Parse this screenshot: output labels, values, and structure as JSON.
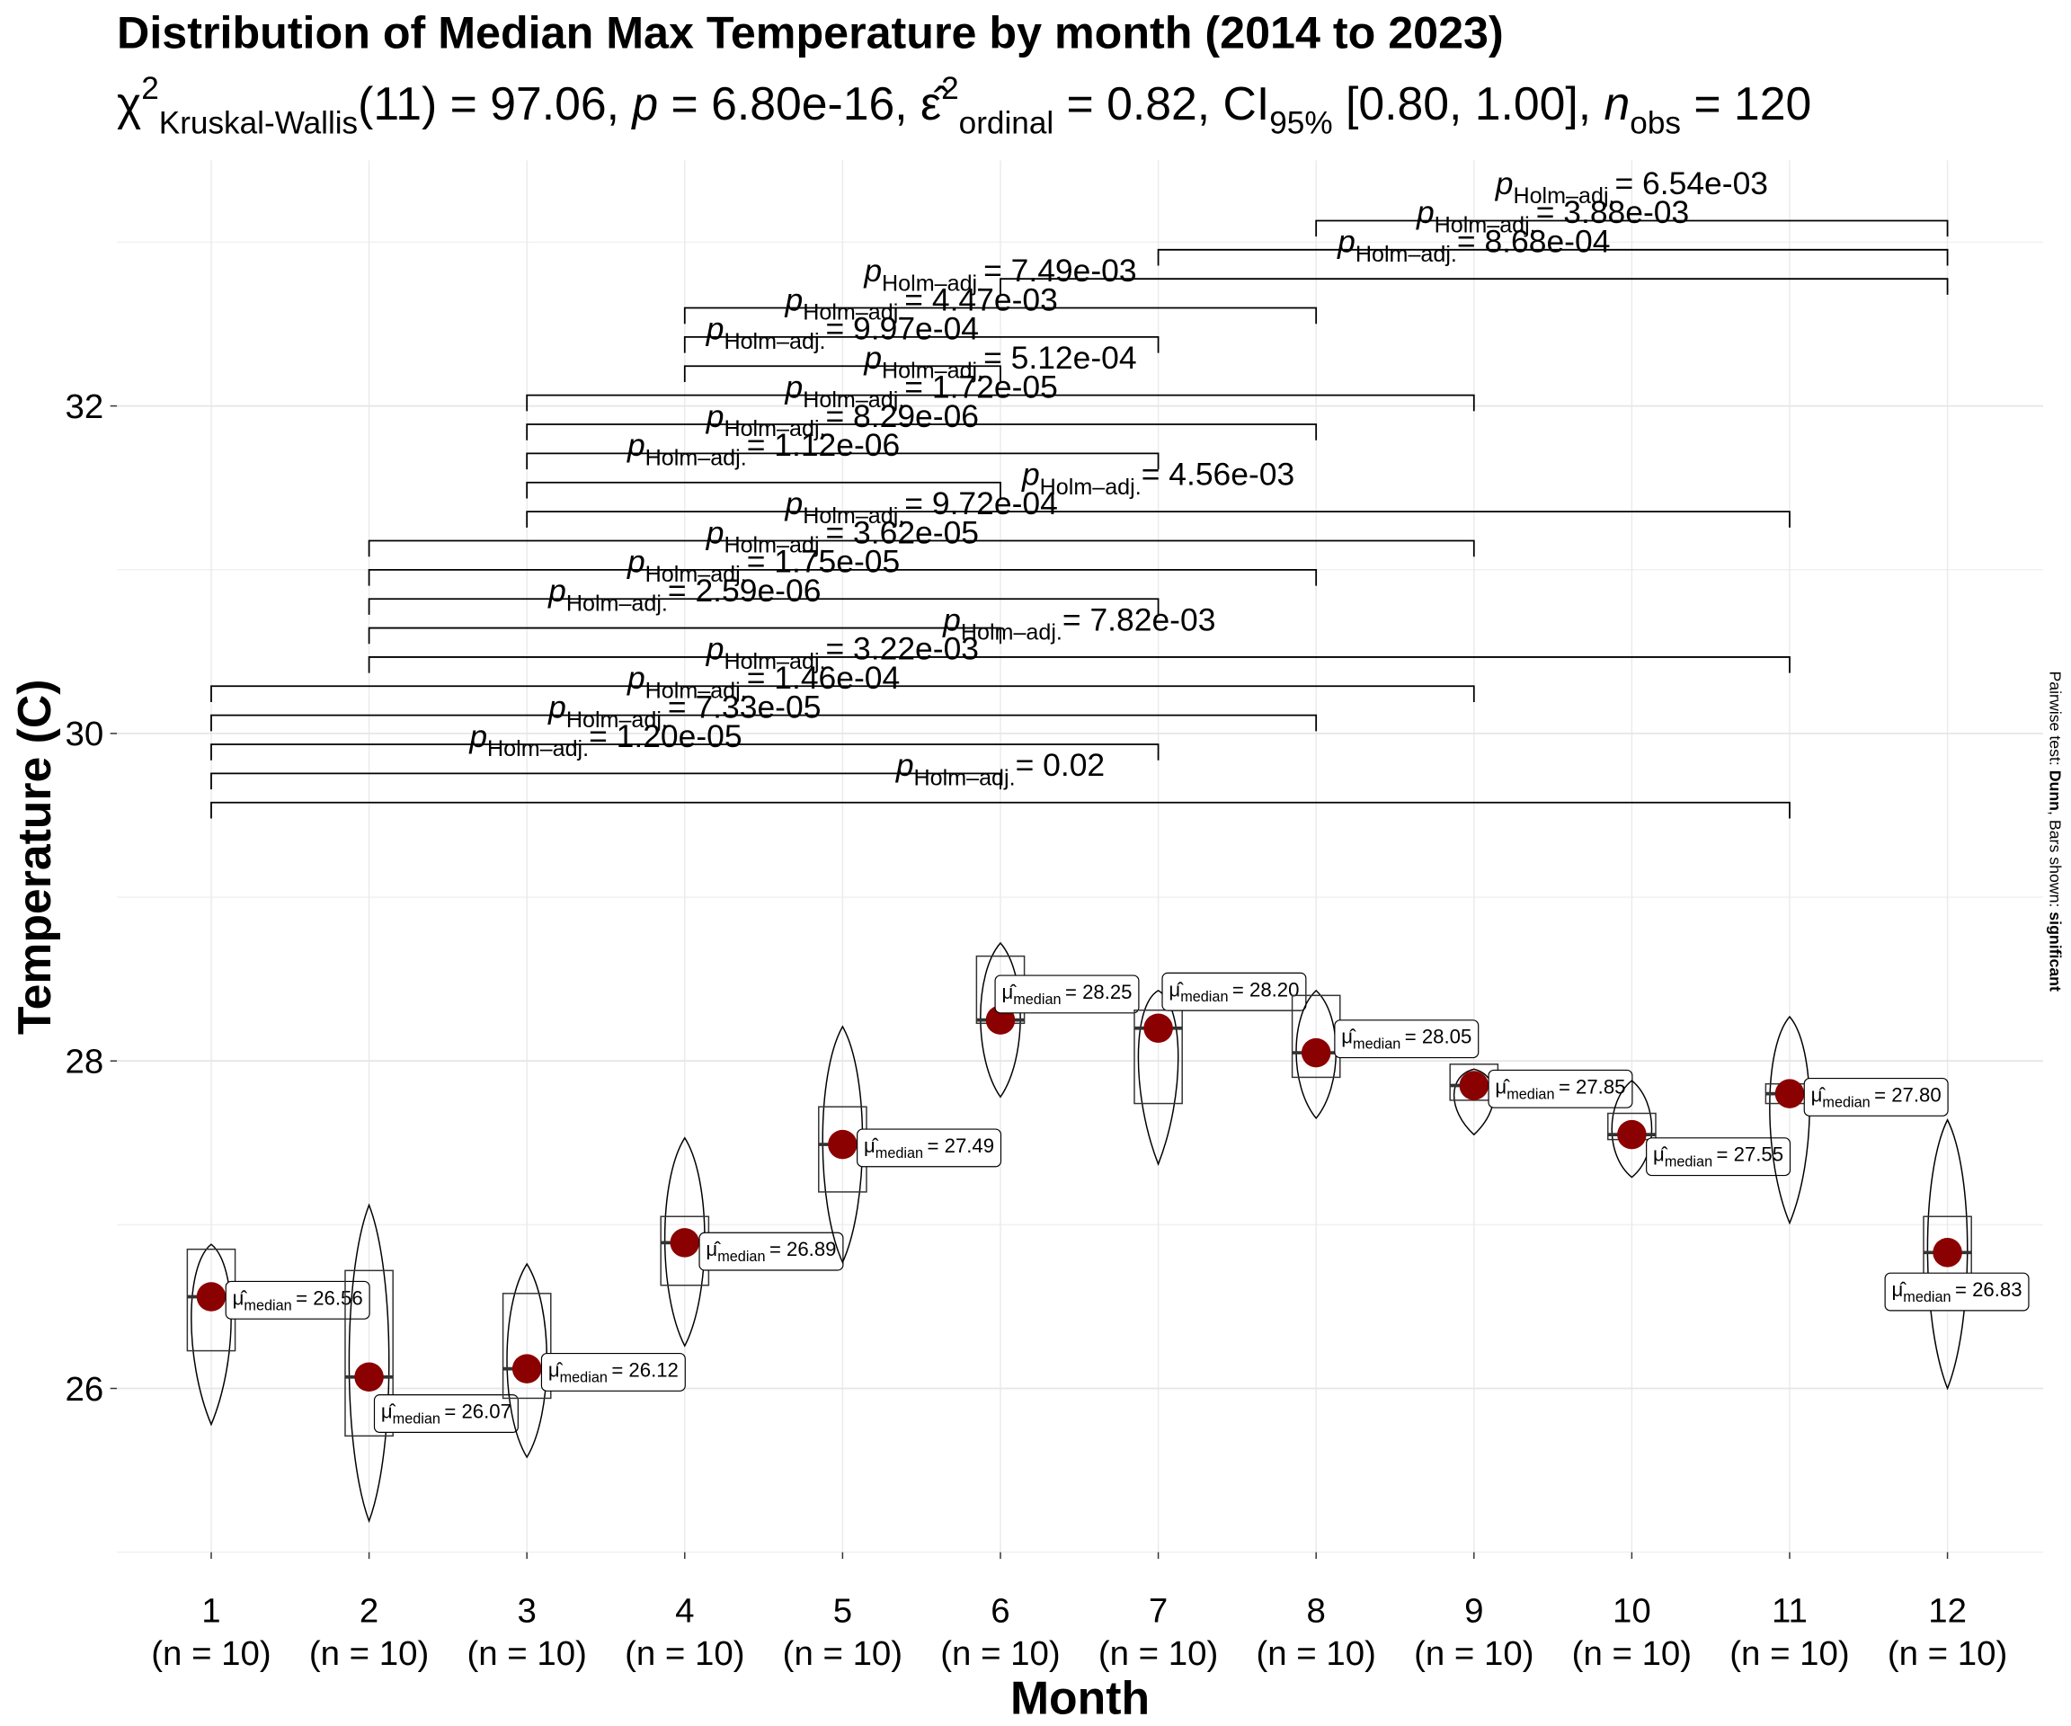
{
  "chart_data": {
    "type": "violin_box",
    "title": "Distribution of Median Max Temperature by month (2014 to 2023)",
    "subtitle": {
      "chi": "χ",
      "chi_sup": "2",
      "chi_sub": "Kruskal-Wallis",
      "stat": "(11) = 97.06, ",
      "p": "p",
      "p_val": " = 6.80e-16, ",
      "eps": "ε̂",
      "eps_sup": "2",
      "eps_sub": "ordinal",
      "eps_val": " = 0.82, ",
      "ci": "CI",
      "ci_sub": "95%",
      "ci_val": " [0.80, 1.00], ",
      "n": "n",
      "n_sub": "obs",
      "n_val": " = 120"
    },
    "caption": {
      "prefix": "Pairwise test: ",
      "test": "Dunn",
      "middle": ", Bars shown: ",
      "shown": "significant"
    },
    "x_label": "Month",
    "y_label": "Temperature (C)",
    "categories": [
      "1",
      "2",
      "3",
      "4",
      "5",
      "6",
      "7",
      "8",
      "9",
      "10",
      "11",
      "12"
    ],
    "n_labels": [
      "(n = 10)",
      "(n = 10)",
      "(n = 10)",
      "(n = 10)",
      "(n = 10)",
      "(n = 10)",
      "(n = 10)",
      "(n = 10)",
      "(n = 10)",
      "(n = 10)",
      "(n = 10)",
      "(n = 10)"
    ],
    "medians": [
      26.56,
      26.07,
      26.12,
      26.89,
      27.49,
      28.25,
      28.2,
      28.05,
      27.85,
      27.55,
      27.8,
      26.83
    ],
    "median_labels": [
      "= 26.56",
      "= 26.07",
      "= 26.12",
      "= 26.89",
      "= 27.49",
      "= 28.25",
      "= 28.20",
      "= 28.05",
      "= 27.85",
      "= 27.55",
      "= 27.80",
      "= 26.83"
    ],
    "q1": [
      26.23,
      25.71,
      25.94,
      26.63,
      27.2,
      28.23,
      27.74,
      27.9,
      27.76,
      27.52,
      27.74,
      26.63
    ],
    "q3": [
      26.85,
      26.72,
      26.58,
      27.05,
      27.72,
      28.64,
      28.31,
      28.4,
      27.98,
      27.68,
      27.86,
      27.05
    ],
    "violin_min": [
      25.78,
      25.19,
      25.58,
      26.26,
      26.77,
      27.78,
      27.37,
      27.65,
      27.55,
      27.29,
      27.01,
      26.0
    ],
    "violin_max": [
      26.88,
      27.12,
      26.76,
      27.53,
      28.21,
      28.72,
      28.43,
      28.43,
      27.95,
      27.88,
      28.27,
      27.64
    ],
    "stat_hat": "μ̂",
    "stat_sub": "median",
    "median_color": "#8b0000",
    "ylim": [
      25,
      33.5
    ],
    "yticks": [
      26,
      28,
      30,
      32
    ],
    "minor_yticks": [
      25,
      27,
      29,
      31,
      33
    ],
    "grid": true,
    "p_symbol": "p",
    "p_sub": "Holm–adj.",
    "comparisons": [
      {
        "group1": 8,
        "group2": 12,
        "label": "= 6.54e-03"
      },
      {
        "group1": 7,
        "group2": 12,
        "label": "= 3.88e-03"
      },
      {
        "group1": 6,
        "group2": 12,
        "label": "= 8.68e-04"
      },
      {
        "group1": 4,
        "group2": 8,
        "label": "= 7.49e-03"
      },
      {
        "group1": 4,
        "group2": 7,
        "label": "= 4.47e-03"
      },
      {
        "group1": 4,
        "group2": 6,
        "label": "= 9.97e-04"
      },
      {
        "group1": 3,
        "group2": 9,
        "label": "= 5.12e-04"
      },
      {
        "group1": 3,
        "group2": 8,
        "label": "= 1.72e-05"
      },
      {
        "group1": 3,
        "group2": 7,
        "label": "= 8.29e-06"
      },
      {
        "group1": 3,
        "group2": 6,
        "label": "= 1.12e-06"
      },
      {
        "group1": 3,
        "group2": 11,
        "label": "= 4.56e-03"
      },
      {
        "group1": 2,
        "group2": 9,
        "label": "= 9.72e-04"
      },
      {
        "group1": 2,
        "group2": 8,
        "label": "= 3.62e-05"
      },
      {
        "group1": 2,
        "group2": 7,
        "label": "= 1.75e-05"
      },
      {
        "group1": 2,
        "group2": 6,
        "label": "= 2.59e-06"
      },
      {
        "group1": 2,
        "group2": 11,
        "label": "= 7.82e-03"
      },
      {
        "group1": 1,
        "group2": 9,
        "label": "= 3.22e-03"
      },
      {
        "group1": 1,
        "group2": 8,
        "label": "= 1.46e-04"
      },
      {
        "group1": 1,
        "group2": 7,
        "label": "= 7.33e-05"
      },
      {
        "group1": 1,
        "group2": 6,
        "label": "= 1.20e-05"
      },
      {
        "group1": 1,
        "group2": 11,
        "label": "= 0.02"
      }
    ]
  }
}
